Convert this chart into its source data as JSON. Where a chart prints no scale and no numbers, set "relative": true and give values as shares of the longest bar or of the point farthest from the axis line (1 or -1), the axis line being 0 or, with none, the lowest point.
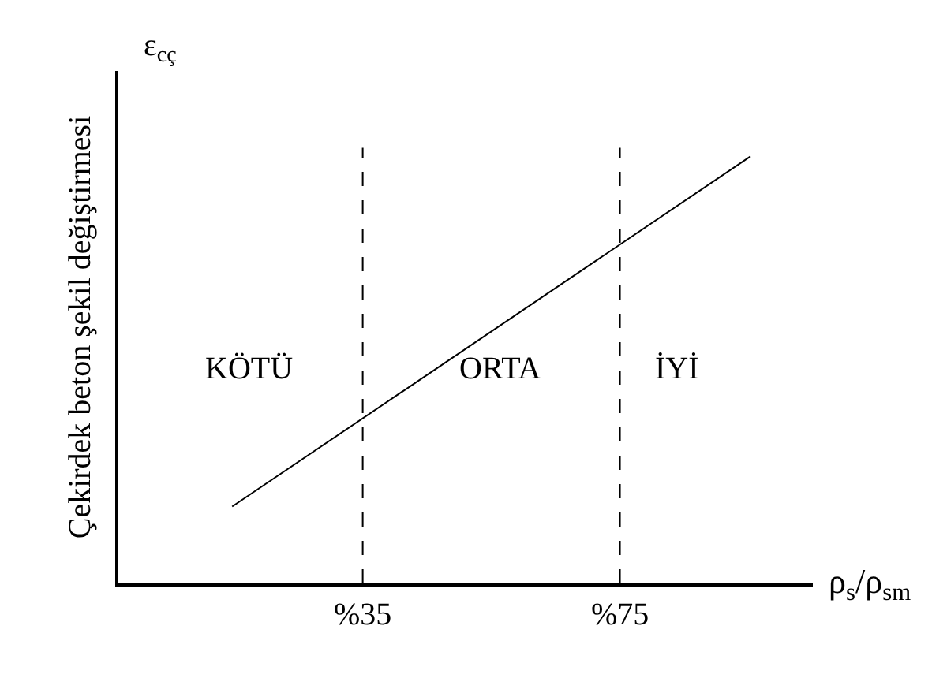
{
  "chart_data": {
    "type": "line",
    "relative": true,
    "ylabel": "Çekirdek beton şekil değiştirmesi",
    "xlabel": "ρ$_{s}$/ρ$_{sm}$",
    "x": [
      14.7,
      95.3
    ],
    "xlim": [
      -3,
      105
    ],
    "xticks": [
      {
        "value": 35,
        "label": "%35"
      },
      {
        "value": 75,
        "label": "%75"
      }
    ],
    "series": [
      {
        "color": "#000000",
        "values": [
          0.18,
          1
        ]
      }
    ],
    "ref_lines": [
      {
        "axis": "x",
        "value": 35,
        "line_style": "dashed",
        "color": "#000000"
      },
      {
        "axis": "x",
        "value": 75,
        "line_style": "dashed",
        "color": "#000000"
      }
    ],
    "annotations": [
      "KÖTÜ",
      "ORTA",
      "İYİ",
      "ε$_{cç}$"
    ],
    "marker": "none",
    "line_style": "solid"
  }
}
